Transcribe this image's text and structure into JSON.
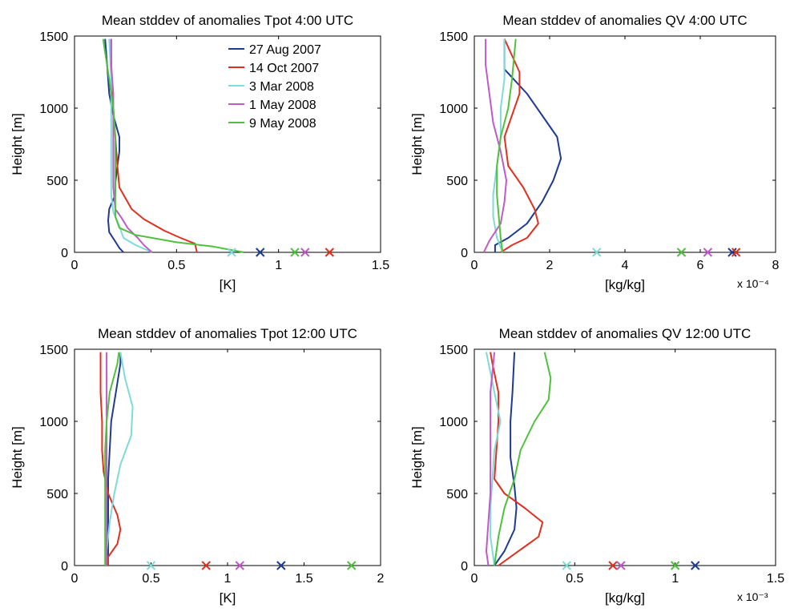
{
  "colors": {
    "27 Aug 2007": "#1f3a93",
    "14 Oct 2007": "#e0301e",
    "3 Mar 2008": "#7fdad9",
    "1 May 2008": "#c159c9",
    "9 May 2008": "#4fc23d"
  },
  "chart_data": [
    {
      "type": "line",
      "title": "Mean stddev of anomalies Tpot 4:00 UTC",
      "xlabel": "[K]",
      "ylabel": "Height [m]",
      "xlim": [
        0,
        1.5
      ],
      "ylim": [
        0,
        1500
      ],
      "xticks": [
        "0",
        "0.5",
        "1",
        "1.5"
      ],
      "yticks": [
        "0",
        "500",
        "1000",
        "1500"
      ],
      "x_multiplier": "",
      "legend": {
        "position": "top-right",
        "entries": [
          "27 Aug 2007",
          "14 Oct 2007",
          "3 Mar 2008",
          "1 May 2008",
          "9 May 2008"
        ]
      },
      "series": [
        {
          "name": "27 Aug 2007",
          "points": [
            [
              0.24,
              0
            ],
            [
              0.22,
              30
            ],
            [
              0.2,
              75
            ],
            [
              0.17,
              140
            ],
            [
              0.165,
              220
            ],
            [
              0.17,
              300
            ],
            [
              0.2,
              400
            ],
            [
              0.2,
              480
            ],
            [
              0.21,
              600
            ],
            [
              0.22,
              700
            ],
            [
              0.22,
              800
            ],
            [
              0.19,
              950
            ],
            [
              0.17,
              1100
            ],
            [
              0.16,
              1300
            ],
            [
              0.15,
              1480
            ]
          ]
        },
        {
          "name": "14 Oct 2007",
          "points": [
            [
              0.6,
              0
            ],
            [
              0.59,
              60
            ],
            [
              0.52,
              100
            ],
            [
              0.44,
              150
            ],
            [
              0.34,
              230
            ],
            [
              0.28,
              300
            ],
            [
              0.22,
              450
            ],
            [
              0.21,
              600
            ],
            [
              0.2,
              800
            ],
            [
              0.19,
              1000
            ],
            [
              0.18,
              1200
            ],
            [
              0.18,
              1480
            ]
          ]
        },
        {
          "name": "3 Mar 2008",
          "points": [
            [
              0.38,
              0
            ],
            [
              0.3,
              50
            ],
            [
              0.24,
              100
            ],
            [
              0.22,
              180
            ],
            [
              0.19,
              280
            ],
            [
              0.18,
              400
            ],
            [
              0.18,
              600
            ],
            [
              0.18,
              800
            ],
            [
              0.18,
              1000
            ],
            [
              0.18,
              1200
            ],
            [
              0.17,
              1480
            ]
          ]
        },
        {
          "name": "1 May 2008",
          "points": [
            [
              0.38,
              0
            ],
            [
              0.34,
              50
            ],
            [
              0.31,
              100
            ],
            [
              0.26,
              170
            ],
            [
              0.23,
              240
            ],
            [
              0.2,
              300
            ],
            [
              0.19,
              450
            ],
            [
              0.19,
              700
            ],
            [
              0.19,
              900
            ],
            [
              0.19,
              1100
            ],
            [
              0.18,
              1300
            ],
            [
              0.18,
              1480
            ]
          ]
        },
        {
          "name": "9 May 2008",
          "points": [
            [
              0.83,
              0
            ],
            [
              0.68,
              40
            ],
            [
              0.5,
              70
            ],
            [
              0.3,
              120
            ],
            [
              0.22,
              170
            ],
            [
              0.2,
              250
            ],
            [
              0.2,
              400
            ],
            [
              0.2,
              600
            ],
            [
              0.2,
              800
            ],
            [
              0.19,
              1000
            ],
            [
              0.17,
              1200
            ],
            [
              0.14,
              1480
            ]
          ]
        }
      ],
      "markers": {
        "27 Aug 2007": 0.91,
        "14 Oct 2007": 1.25,
        "3 Mar 2008": 0.77,
        "1 May 2008": 1.13,
        "9 May 2008": 1.08
      }
    },
    {
      "type": "line",
      "title": "Mean stddev of anomalies QV 4:00 UTC",
      "xlabel": "[kg/kg]",
      "ylabel": "Height [m]",
      "xlim": [
        0,
        8
      ],
      "ylim": [
        0,
        1500
      ],
      "xticks": [
        "0",
        "2",
        "4",
        "6",
        "8"
      ],
      "yticks": [
        "0",
        "500",
        "1000",
        "1500"
      ],
      "x_multiplier": "x 10⁻⁴",
      "legend": null,
      "series": [
        {
          "name": "27 Aug 2007",
          "points": [
            [
              0.55,
              0
            ],
            [
              0.55,
              50
            ],
            [
              0.9,
              100
            ],
            [
              1.4,
              200
            ],
            [
              1.8,
              350
            ],
            [
              2.1,
              500
            ],
            [
              2.3,
              650
            ],
            [
              2.2,
              800
            ],
            [
              1.8,
              950
            ],
            [
              1.4,
              1100
            ],
            [
              0.8,
              1270
            ],
            [
              0.8,
              1480
            ]
          ]
        },
        {
          "name": "14 Oct 2007",
          "points": [
            [
              0.7,
              0
            ],
            [
              1.0,
              50
            ],
            [
              1.4,
              100
            ],
            [
              1.7,
              200
            ],
            [
              1.6,
              300
            ],
            [
              1.3,
              450
            ],
            [
              0.9,
              600
            ],
            [
              0.8,
              800
            ],
            [
              1.0,
              950
            ],
            [
              1.2,
              1100
            ],
            [
              1.2,
              1250
            ],
            [
              0.8,
              1480
            ]
          ]
        },
        {
          "name": "3 Mar 2008",
          "points": [
            [
              0.75,
              0
            ],
            [
              0.6,
              100
            ],
            [
              0.5,
              250
            ],
            [
              0.5,
              400
            ],
            [
              0.6,
              600
            ],
            [
              0.7,
              800
            ],
            [
              0.7,
              1000
            ],
            [
              0.8,
              1200
            ],
            [
              0.8,
              1480
            ]
          ]
        },
        {
          "name": "1 May 2008",
          "points": [
            [
              0.25,
              0
            ],
            [
              0.4,
              80
            ],
            [
              0.7,
              200
            ],
            [
              0.8,
              350
            ],
            [
              0.85,
              500
            ],
            [
              0.7,
              700
            ],
            [
              0.5,
              900
            ],
            [
              0.4,
              1100
            ],
            [
              0.3,
              1300
            ],
            [
              0.3,
              1480
            ]
          ]
        },
        {
          "name": "9 May 2008",
          "points": [
            [
              0.75,
              0
            ],
            [
              0.7,
              100
            ],
            [
              0.65,
              250
            ],
            [
              0.6,
              400
            ],
            [
              0.6,
              600
            ],
            [
              0.7,
              800
            ],
            [
              0.9,
              1000
            ],
            [
              1.0,
              1200
            ],
            [
              1.1,
              1480
            ]
          ]
        }
      ],
      "markers": {
        "27 Aug 2007": 6.85,
        "14 Oct 2007": 6.95,
        "3 Mar 2008": 3.25,
        "1 May 2008": 6.2,
        "9 May 2008": 5.5
      }
    },
    {
      "type": "line",
      "title": "Mean stddev of anomalies Tpot 12:00 UTC",
      "xlabel": "[K]",
      "ylabel": "Height [m]",
      "xlim": [
        0,
        2
      ],
      "ylim": [
        0,
        1500
      ],
      "xticks": [
        "0",
        "0.5",
        "1",
        "1.5",
        "2"
      ],
      "yticks": [
        "0",
        "500",
        "1000",
        "1500"
      ],
      "x_multiplier": "",
      "legend": null,
      "series": [
        {
          "name": "27 Aug 2007",
          "points": [
            [
              0.22,
              0
            ],
            [
              0.22,
              200
            ],
            [
              0.22,
              400
            ],
            [
              0.22,
              600
            ],
            [
              0.23,
              800
            ],
            [
              0.24,
              1000
            ],
            [
              0.27,
              1200
            ],
            [
              0.3,
              1400
            ],
            [
              0.3,
              1480
            ]
          ]
        },
        {
          "name": "14 Oct 2007",
          "points": [
            [
              0.22,
              0
            ],
            [
              0.22,
              60
            ],
            [
              0.28,
              150
            ],
            [
              0.3,
              250
            ],
            [
              0.28,
              350
            ],
            [
              0.22,
              500
            ],
            [
              0.19,
              650
            ],
            [
              0.18,
              800
            ],
            [
              0.18,
              1000
            ],
            [
              0.17,
              1200
            ],
            [
              0.17,
              1480
            ]
          ]
        },
        {
          "name": "3 Mar 2008",
          "points": [
            [
              0.21,
              0
            ],
            [
              0.21,
              100
            ],
            [
              0.23,
              300
            ],
            [
              0.26,
              500
            ],
            [
              0.3,
              700
            ],
            [
              0.37,
              900
            ],
            [
              0.38,
              1100
            ],
            [
              0.33,
              1300
            ],
            [
              0.3,
              1480
            ]
          ]
        },
        {
          "name": "1 May 2008",
          "points": [
            [
              0.21,
              0
            ],
            [
              0.21,
              300
            ],
            [
              0.21,
              600
            ],
            [
              0.21,
              900
            ],
            [
              0.21,
              1200
            ],
            [
              0.21,
              1480
            ]
          ]
        },
        {
          "name": "9 May 2008",
          "points": [
            [
              0.2,
              0
            ],
            [
              0.2,
              200
            ],
            [
              0.2,
              500
            ],
            [
              0.2,
              800
            ],
            [
              0.21,
              1000
            ],
            [
              0.23,
              1200
            ],
            [
              0.28,
              1400
            ],
            [
              0.29,
              1480
            ]
          ]
        }
      ],
      "markers": {
        "27 Aug 2007": 1.35,
        "14 Oct 2007": 0.86,
        "3 Mar 2008": 0.5,
        "1 May 2008": 1.08,
        "9 May 2008": 1.81
      }
    },
    {
      "type": "line",
      "title": "Mean stddev of anomalies QV 12:00 UTC",
      "xlabel": "[kg/kg]",
      "ylabel": "Height [m]",
      "xlim": [
        0,
        1.5
      ],
      "ylim": [
        0,
        1500
      ],
      "xticks": [
        "0",
        "0.5",
        "1",
        "1.5"
      ],
      "yticks": [
        "0",
        "500",
        "1000",
        "1500"
      ],
      "x_multiplier": "x 10⁻³",
      "legend": null,
      "series": [
        {
          "name": "27 Aug 2007",
          "points": [
            [
              0.1,
              0
            ],
            [
              0.15,
              100
            ],
            [
              0.2,
              250
            ],
            [
              0.21,
              400
            ],
            [
              0.2,
              550
            ],
            [
              0.18,
              750
            ],
            [
              0.18,
              1000
            ],
            [
              0.19,
              1200
            ],
            [
              0.2,
              1480
            ]
          ]
        },
        {
          "name": "14 Oct 2007",
          "points": [
            [
              0.12,
              0
            ],
            [
              0.2,
              80
            ],
            [
              0.27,
              150
            ],
            [
              0.32,
              200
            ],
            [
              0.34,
              300
            ],
            [
              0.25,
              400
            ],
            [
              0.15,
              500
            ],
            [
              0.1,
              600
            ],
            [
              0.11,
              800
            ],
            [
              0.12,
              1000
            ],
            [
              0.12,
              1200
            ],
            [
              0.09,
              1400
            ],
            [
              0.08,
              1480
            ]
          ]
        },
        {
          "name": "3 Mar 2008",
          "points": [
            [
              0.1,
              0
            ],
            [
              0.08,
              200
            ],
            [
              0.08,
              400
            ],
            [
              0.09,
              600
            ],
            [
              0.1,
              800
            ],
            [
              0.13,
              1000
            ],
            [
              0.1,
              1200
            ],
            [
              0.06,
              1480
            ]
          ]
        },
        {
          "name": "1 May 2008",
          "points": [
            [
              0.07,
              0
            ],
            [
              0.06,
              100
            ],
            [
              0.07,
              300
            ],
            [
              0.08,
              500
            ],
            [
              0.08,
              800
            ],
            [
              0.08,
              1000
            ],
            [
              0.08,
              1200
            ],
            [
              0.1,
              1480
            ]
          ]
        },
        {
          "name": "9 May 2008",
          "points": [
            [
              0.1,
              0
            ],
            [
              0.12,
              200
            ],
            [
              0.15,
              400
            ],
            [
              0.2,
              600
            ],
            [
              0.23,
              800
            ],
            [
              0.3,
              1000
            ],
            [
              0.37,
              1150
            ],
            [
              0.38,
              1300
            ],
            [
              0.35,
              1480
            ]
          ]
        }
      ],
      "markers": {
        "27 Aug 2007": 1.1,
        "14 Oct 2007": 0.69,
        "3 Mar 2008": 0.46,
        "1 May 2008": 0.73,
        "9 May 2008": 1.0
      }
    }
  ]
}
